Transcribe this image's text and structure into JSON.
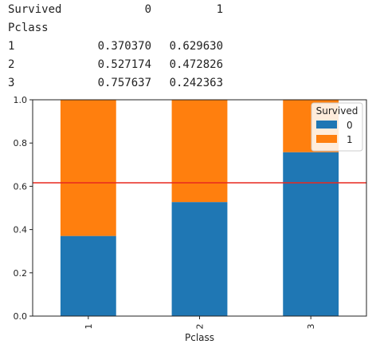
{
  "table": {
    "header": {
      "label": "Survived",
      "col0": "0",
      "col1": "1"
    },
    "index_name": "Pclass",
    "rows": [
      {
        "idx": "1",
        "v0": "0.370370",
        "v1": "0.629630"
      },
      {
        "idx": "2",
        "v0": "0.527174",
        "v1": "0.472826"
      },
      {
        "idx": "3",
        "v0": "0.757637",
        "v1": "0.242363"
      }
    ]
  },
  "chart_data": {
    "type": "bar",
    "stacked": true,
    "categories": [
      "1",
      "2",
      "3"
    ],
    "series": [
      {
        "name": "0",
        "values": [
          0.37037,
          0.527174,
          0.757637
        ],
        "color": "#1f77b4"
      },
      {
        "name": "1",
        "values": [
          0.62963,
          0.472826,
          0.242363
        ],
        "color": "#ff7f0e"
      }
    ],
    "xlabel": "Pclass",
    "ylabel": "",
    "ylim": [
      0,
      1.0
    ],
    "yticks": [
      "0.0",
      "0.2",
      "0.4",
      "0.6",
      "0.8",
      "1.0"
    ],
    "hline": {
      "y": 0.6162,
      "color": "#e8281e"
    },
    "legend": {
      "title": "Survived",
      "placement": "top-right"
    },
    "grid": false
  }
}
